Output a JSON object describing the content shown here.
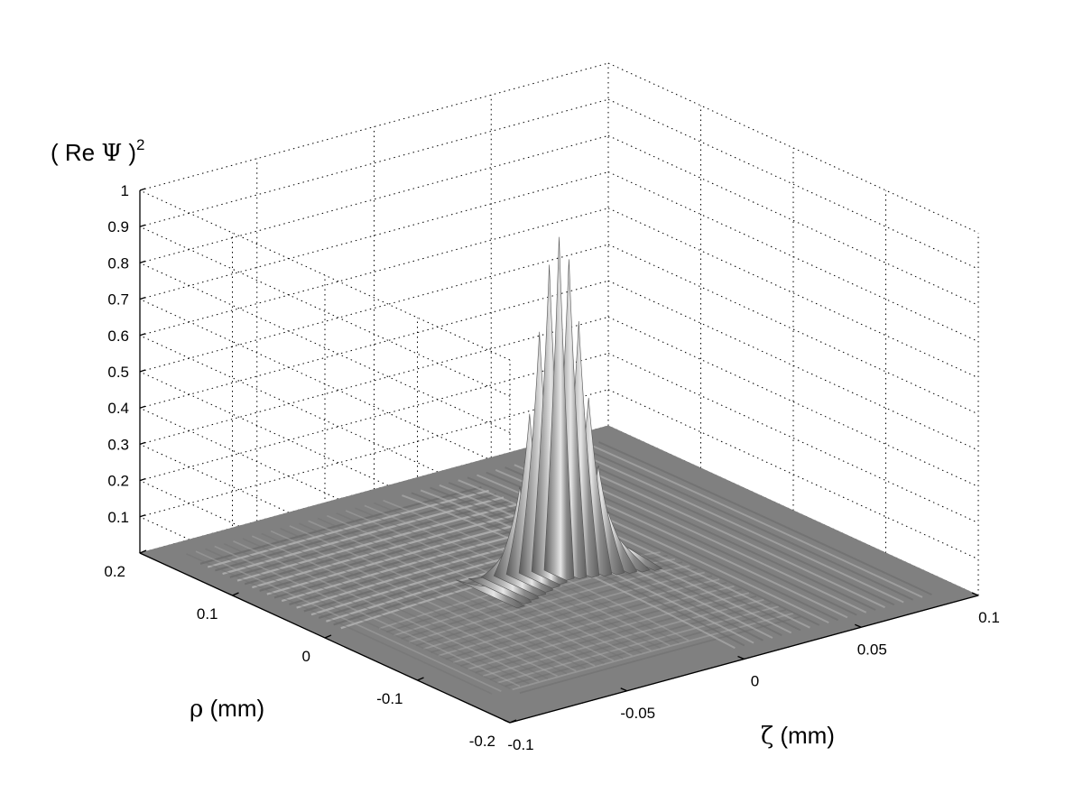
{
  "chart_data": {
    "type": "surface",
    "zlabel": {
      "prefix": "( Re ",
      "symbol": "Ψ",
      "suffix": " )",
      "sup": "2"
    },
    "rholabel": {
      "symbol": "ρ",
      "unit": " (mm)"
    },
    "zetalabel": {
      "symbol": "ζ",
      "unit": " (mm)"
    },
    "z_ticks": [
      "0.1",
      "0.2",
      "0.3",
      "0.4",
      "0.5",
      "0.6",
      "0.7",
      "0.8",
      "0.9",
      "1"
    ],
    "rho_ticks": [
      "0.2",
      "0.1",
      "0",
      "-0.1",
      "-0.2"
    ],
    "zeta_ticks": [
      "-0.1",
      "-0.05",
      "0",
      "0.05",
      "0.1"
    ],
    "zlim": [
      0,
      1
    ],
    "rho_range": [
      -0.2,
      0.2
    ],
    "zeta_range": [
      -0.1,
      0.1
    ],
    "grid": true,
    "surface_color": "#808080",
    "peak": {
      "zeta": 0,
      "rho": 0,
      "value": 0.93
    },
    "on_axis_peaks": [
      {
        "zeta": -0.01,
        "value": 0.31
      },
      {
        "zeta": -0.005,
        "value": 0.63
      },
      {
        "zeta": 0,
        "value": 0.93
      },
      {
        "zeta": 0.005,
        "value": 0.63
      },
      {
        "zeta": 0.01,
        "value": 0.31
      },
      {
        "zeta": -0.015,
        "value": 0.14
      },
      {
        "zeta": 0.015,
        "value": 0.14
      }
    ]
  }
}
